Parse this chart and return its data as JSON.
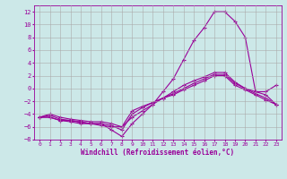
{
  "xlabel": "Windchill (Refroidissement éolien,°C)",
  "background_color": "#cce8e8",
  "grid_color": "#aaaaaa",
  "line_color": "#990099",
  "xlim": [
    -0.5,
    23.5
  ],
  "ylim": [
    -8,
    13
  ],
  "xticks": [
    0,
    1,
    2,
    3,
    4,
    5,
    6,
    7,
    8,
    9,
    10,
    11,
    12,
    13,
    14,
    15,
    16,
    17,
    18,
    19,
    20,
    21,
    22,
    23
  ],
  "yticks": [
    -8,
    -6,
    -4,
    -2,
    0,
    2,
    4,
    6,
    8,
    10,
    12
  ],
  "lines": [
    {
      "x": [
        0,
        1,
        2,
        3,
        4,
        5,
        6,
        7,
        8,
        9,
        10,
        11,
        12,
        13,
        14,
        15,
        16,
        17,
        18,
        19,
        20,
        21,
        22,
        23
      ],
      "y": [
        -4.5,
        -4.5,
        -5.0,
        -5.0,
        -5.3,
        -5.5,
        -5.5,
        -6.5,
        -7.5,
        -5.5,
        -4.0,
        -2.5,
        -0.5,
        1.5,
        4.5,
        7.5,
        9.5,
        12.0,
        12.0,
        10.5,
        8.0,
        -0.5,
        -0.5,
        0.5
      ]
    },
    {
      "x": [
        0,
        1,
        2,
        3,
        4,
        5,
        6,
        7,
        8,
        9,
        10,
        11,
        12,
        13,
        14,
        15,
        16,
        17,
        18,
        19,
        20,
        21,
        22,
        23
      ],
      "y": [
        -4.5,
        -4.5,
        -5.0,
        -5.2,
        -5.5,
        -5.5,
        -5.8,
        -6.0,
        -6.0,
        -4.5,
        -3.5,
        -2.5,
        -1.5,
        -0.5,
        0.5,
        1.2,
        1.8,
        2.5,
        2.5,
        1.0,
        0.0,
        -0.5,
        -1.0,
        -2.5
      ]
    },
    {
      "x": [
        0,
        1,
        2,
        3,
        4,
        5,
        6,
        7,
        8,
        9,
        10,
        11,
        12,
        13,
        14,
        15,
        16,
        17,
        18,
        19,
        20,
        21,
        22,
        23
      ],
      "y": [
        -4.5,
        -4.2,
        -4.8,
        -5.0,
        -5.2,
        -5.5,
        -5.5,
        -5.8,
        -6.5,
        -4.0,
        -3.0,
        -2.2,
        -1.5,
        -0.8,
        0.0,
        0.8,
        1.5,
        2.2,
        2.2,
        0.8,
        0.0,
        -0.8,
        -1.5,
        -2.5
      ]
    },
    {
      "x": [
        0,
        1,
        2,
        3,
        4,
        5,
        6,
        7,
        8,
        9,
        10,
        11,
        12,
        13,
        14,
        15,
        16,
        17,
        18,
        19,
        20,
        21,
        22,
        23
      ],
      "y": [
        -4.5,
        -4.0,
        -4.5,
        -4.8,
        -5.0,
        -5.2,
        -5.2,
        -5.5,
        -6.0,
        -3.5,
        -2.8,
        -2.2,
        -1.5,
        -1.0,
        -0.2,
        0.5,
        1.2,
        2.0,
        2.0,
        0.5,
        -0.2,
        -1.0,
        -1.8,
        -2.5
      ]
    }
  ]
}
